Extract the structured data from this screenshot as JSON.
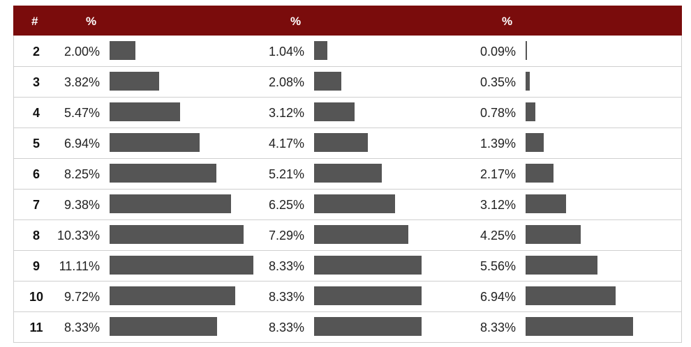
{
  "header": {
    "num": "#",
    "col1": "%",
    "col2": "%",
    "col3": "%"
  },
  "colors": {
    "header_bg": "#7a0c0c",
    "bar": "#555555"
  },
  "chart_data": {
    "type": "table",
    "columns": [
      "#",
      "%",
      "%",
      "%"
    ],
    "bar_scale_max": 11.11,
    "rows": [
      {
        "label": "2",
        "values": [
          2.0,
          1.04,
          0.09
        ],
        "labels": [
          "2.00%",
          "1.04%",
          "0.09%"
        ]
      },
      {
        "label": "3",
        "values": [
          3.82,
          2.08,
          0.35
        ],
        "labels": [
          "3.82%",
          "2.08%",
          "0.35%"
        ]
      },
      {
        "label": "4",
        "values": [
          5.47,
          3.12,
          0.78
        ],
        "labels": [
          "5.47%",
          "3.12%",
          "0.78%"
        ]
      },
      {
        "label": "5",
        "values": [
          6.94,
          4.17,
          1.39
        ],
        "labels": [
          "6.94%",
          "4.17%",
          "1.39%"
        ]
      },
      {
        "label": "6",
        "values": [
          8.25,
          5.21,
          2.17
        ],
        "labels": [
          "8.25%",
          "5.21%",
          "2.17%"
        ]
      },
      {
        "label": "7",
        "values": [
          9.38,
          6.25,
          3.12
        ],
        "labels": [
          "9.38%",
          "6.25%",
          "3.12%"
        ]
      },
      {
        "label": "8",
        "values": [
          10.33,
          7.29,
          4.25
        ],
        "labels": [
          "10.33%",
          "7.29%",
          "4.25%"
        ]
      },
      {
        "label": "9",
        "values": [
          11.11,
          8.33,
          5.56
        ],
        "labels": [
          "11.11%",
          "8.33%",
          "5.56%"
        ]
      },
      {
        "label": "10",
        "values": [
          9.72,
          8.33,
          6.94
        ],
        "labels": [
          "9.72%",
          "8.33%",
          "6.94%"
        ]
      },
      {
        "label": "11",
        "values": [
          8.33,
          8.33,
          8.33
        ],
        "labels": [
          "8.33%",
          "8.33%",
          "8.33%"
        ]
      }
    ]
  }
}
